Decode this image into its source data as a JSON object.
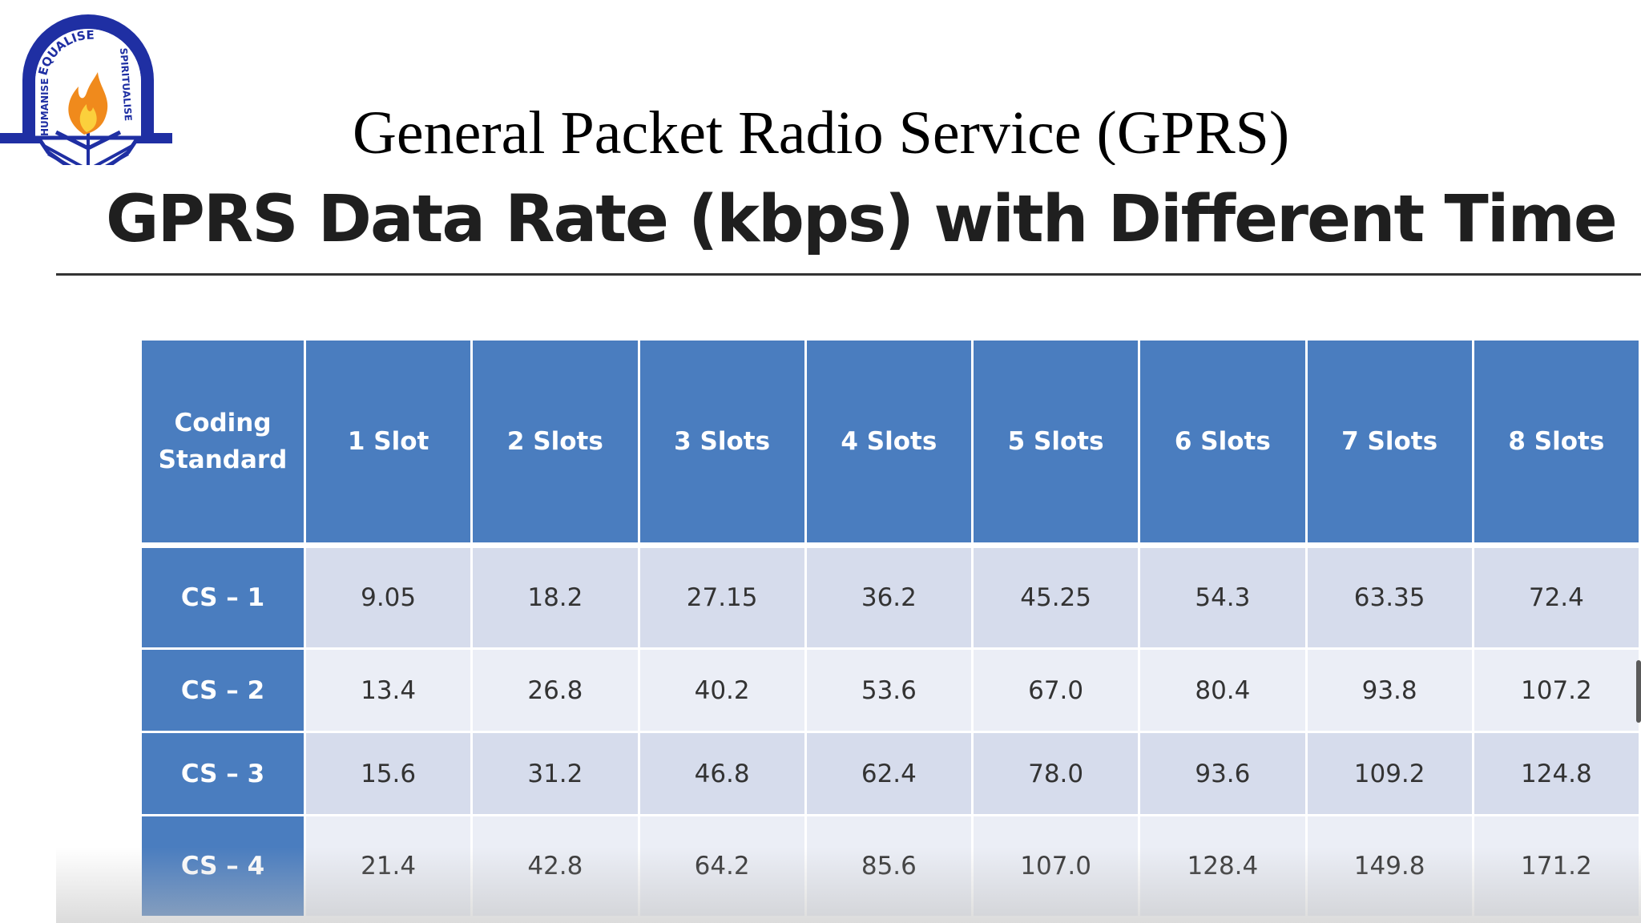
{
  "slide": {
    "title": "General Packet Radio Service (GPRS)",
    "logo": {
      "icon": "institution-emblem-flame-book-icon",
      "motto_top": "EQUALISE",
      "motto_left": "HUMANISE",
      "motto_right": "SPIRITUALISE",
      "colors": {
        "arch": "#1f2fa3",
        "flame_outer": "#f08a1c",
        "flame_inner": "#fbd03c"
      }
    }
  },
  "screen": {
    "heading": "GPRS Data Rate (kbps) with Different Time Slots",
    "table": {
      "header_color": "#4a7dbf",
      "row_colors": [
        "#d6dcec",
        "#ebeef6"
      ],
      "corner_label_lines": [
        "Coding",
        "Standard"
      ],
      "columns": [
        "1 Slot",
        "2 Slots",
        "3 Slots",
        "4 Slots",
        "5 Slots",
        "6 Slots",
        "7 Slots",
        "8 Slots"
      ],
      "rows": [
        {
          "label": "CS – 1",
          "values": [
            "9.05",
            "18.2",
            "27.15",
            "36.2",
            "45.25",
            "54.3",
            "63.35",
            "72.4"
          ]
        },
        {
          "label": "CS – 2",
          "values": [
            "13.4",
            "26.8",
            "40.2",
            "53.6",
            "67.0",
            "80.4",
            "93.8",
            "107.2"
          ]
        },
        {
          "label": "CS – 3",
          "values": [
            "15.6",
            "31.2",
            "46.8",
            "62.4",
            "78.0",
            "93.6",
            "109.2",
            "124.8"
          ]
        },
        {
          "label": "CS – 4",
          "values": [
            "21.4",
            "42.8",
            "64.2",
            "85.6",
            "107.0",
            "128.4",
            "149.8",
            "171.2"
          ]
        }
      ]
    }
  }
}
